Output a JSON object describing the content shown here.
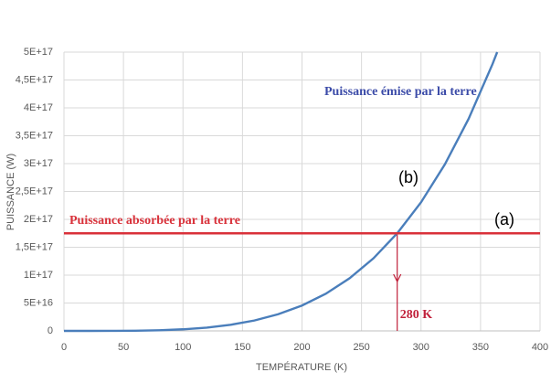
{
  "chart_data": {
    "type": "line",
    "xlabel": "TEMPÉRATURE (K)",
    "ylabel": "PUISSANCE (W)",
    "xlim": [
      0,
      400
    ],
    "xticks": [
      0,
      50,
      100,
      150,
      200,
      250,
      300,
      350,
      400
    ],
    "ylim": [
      0,
      5e+17
    ],
    "yticks": [
      0,
      {
        "value": 5e+16,
        "label": "5E+16"
      },
      {
        "value": 1e+17,
        "label": "1E+17"
      },
      {
        "value": 1.5e+17,
        "label": "1,5E+17"
      },
      {
        "value": 2e+17,
        "label": "2E+17"
      },
      {
        "value": 2.5e+17,
        "label": "2,5E+17"
      },
      {
        "value": 3e+17,
        "label": "3E+17"
      },
      {
        "value": 3.5e+17,
        "label": "3,5E+17"
      },
      {
        "value": 4e+17,
        "label": "4E+17"
      },
      {
        "value": 4.5e+17,
        "label": "4,5E+17"
      },
      {
        "value": 5e+17,
        "label": "5E+17"
      }
    ],
    "grid": true,
    "series": [
      {
        "name": "Puissance émise par la terre",
        "color": "#4a7ebb",
        "x": [
          0,
          20,
          40,
          60,
          80,
          100,
          120,
          140,
          160,
          180,
          200,
          220,
          240,
          260,
          280,
          300,
          320,
          340,
          360,
          364
        ],
        "values": [
          0,
          4560000000000.0,
          72900000000000.0,
          369000000000000.0,
          1166000000000000.0,
          2850000000000000.0,
          5900000000000000.0,
          1.094e+16,
          1.866e+16,
          2.989e+16,
          4.555e+16,
          6.669e+16,
          9.446e+16,
          1.301e+17,
          1.75e+17,
          2.306e+17,
          2.985e+17,
          3.804e+17,
          4.782e+17,
          5e+17
        ],
        "tag": "(b)"
      },
      {
        "name": "Puissance absorbée par la terre",
        "color": "#d9313a",
        "x": [
          0,
          400
        ],
        "values": [
          1.75e+17,
          1.75e+17
        ],
        "tag": "(a)"
      }
    ],
    "drop_line": {
      "x": 280,
      "label": "280 K",
      "color": "#c0203a"
    }
  }
}
